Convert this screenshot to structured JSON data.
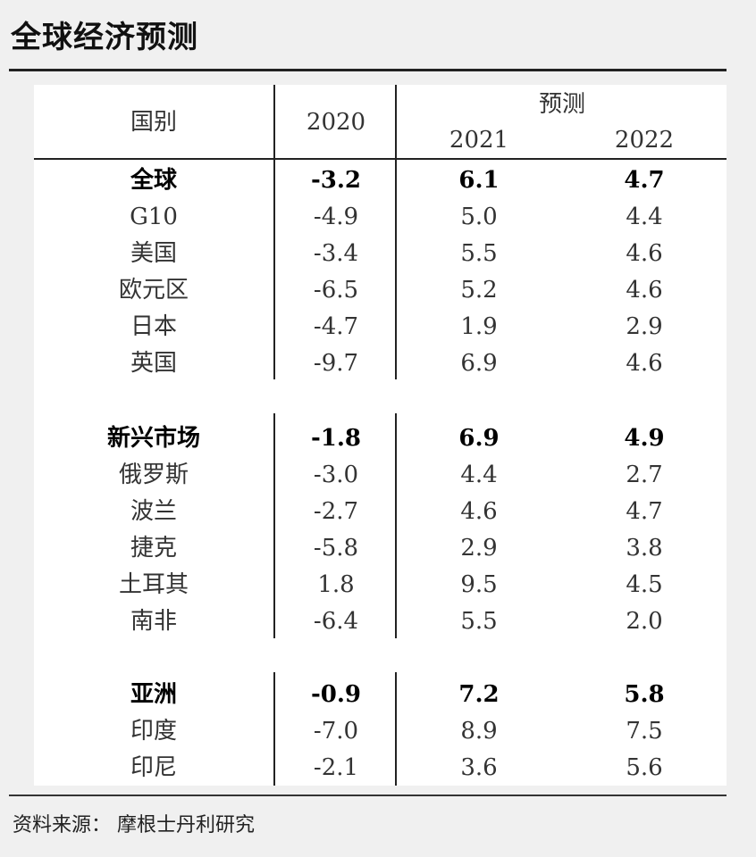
{
  "title": "全球经济预测",
  "header": {
    "country": "国别",
    "year_2020": "2020",
    "forecast": "预测",
    "year_2021": "2021",
    "year_2022": "2022"
  },
  "rows": [
    {
      "name": "全球",
      "v2020": "-3.2",
      "v2021": "6.1",
      "v2022": "4.7",
      "bold": true
    },
    {
      "name": "G10",
      "v2020": "-4.9",
      "v2021": "5.0",
      "v2022": "4.4",
      "bold": false
    },
    {
      "name": "美国",
      "v2020": "-3.4",
      "v2021": "5.5",
      "v2022": "4.6",
      "bold": false
    },
    {
      "name": "欧元区",
      "v2020": "-6.5",
      "v2021": "5.2",
      "v2022": "4.6",
      "bold": false
    },
    {
      "name": "日本",
      "v2020": "-4.7",
      "v2021": "1.9",
      "v2022": "2.9",
      "bold": false
    },
    {
      "name": "英国",
      "v2020": "-9.7",
      "v2021": "6.9",
      "v2022": "4.6",
      "bold": false
    },
    {
      "name": "新兴市场",
      "v2020": "-1.8",
      "v2021": "6.9",
      "v2022": "4.9",
      "bold": true
    },
    {
      "name": "俄罗斯",
      "v2020": "-3.0",
      "v2021": "4.4",
      "v2022": "2.7",
      "bold": false
    },
    {
      "name": "波兰",
      "v2020": "-2.7",
      "v2021": "4.6",
      "v2022": "4.7",
      "bold": false
    },
    {
      "name": "捷克",
      "v2020": "-5.8",
      "v2021": "2.9",
      "v2022": "3.8",
      "bold": false
    },
    {
      "name": "土耳其",
      "v2020": "1.8",
      "v2021": "9.5",
      "v2022": "4.5",
      "bold": false
    },
    {
      "name": "南非",
      "v2020": "-6.4",
      "v2021": "5.5",
      "v2022": "2.0",
      "bold": false
    },
    {
      "name": "亚洲",
      "v2020": "-0.9",
      "v2021": "7.2",
      "v2022": "5.8",
      "bold": true
    },
    {
      "name": "印度",
      "v2020": "-7.0",
      "v2021": "8.9",
      "v2022": "7.5",
      "bold": false
    },
    {
      "name": "印尼",
      "v2020": "-2.1",
      "v2021": "3.6",
      "v2022": "5.6",
      "bold": false
    }
  ],
  "source": "资料来源：  摩根士丹利研究"
}
